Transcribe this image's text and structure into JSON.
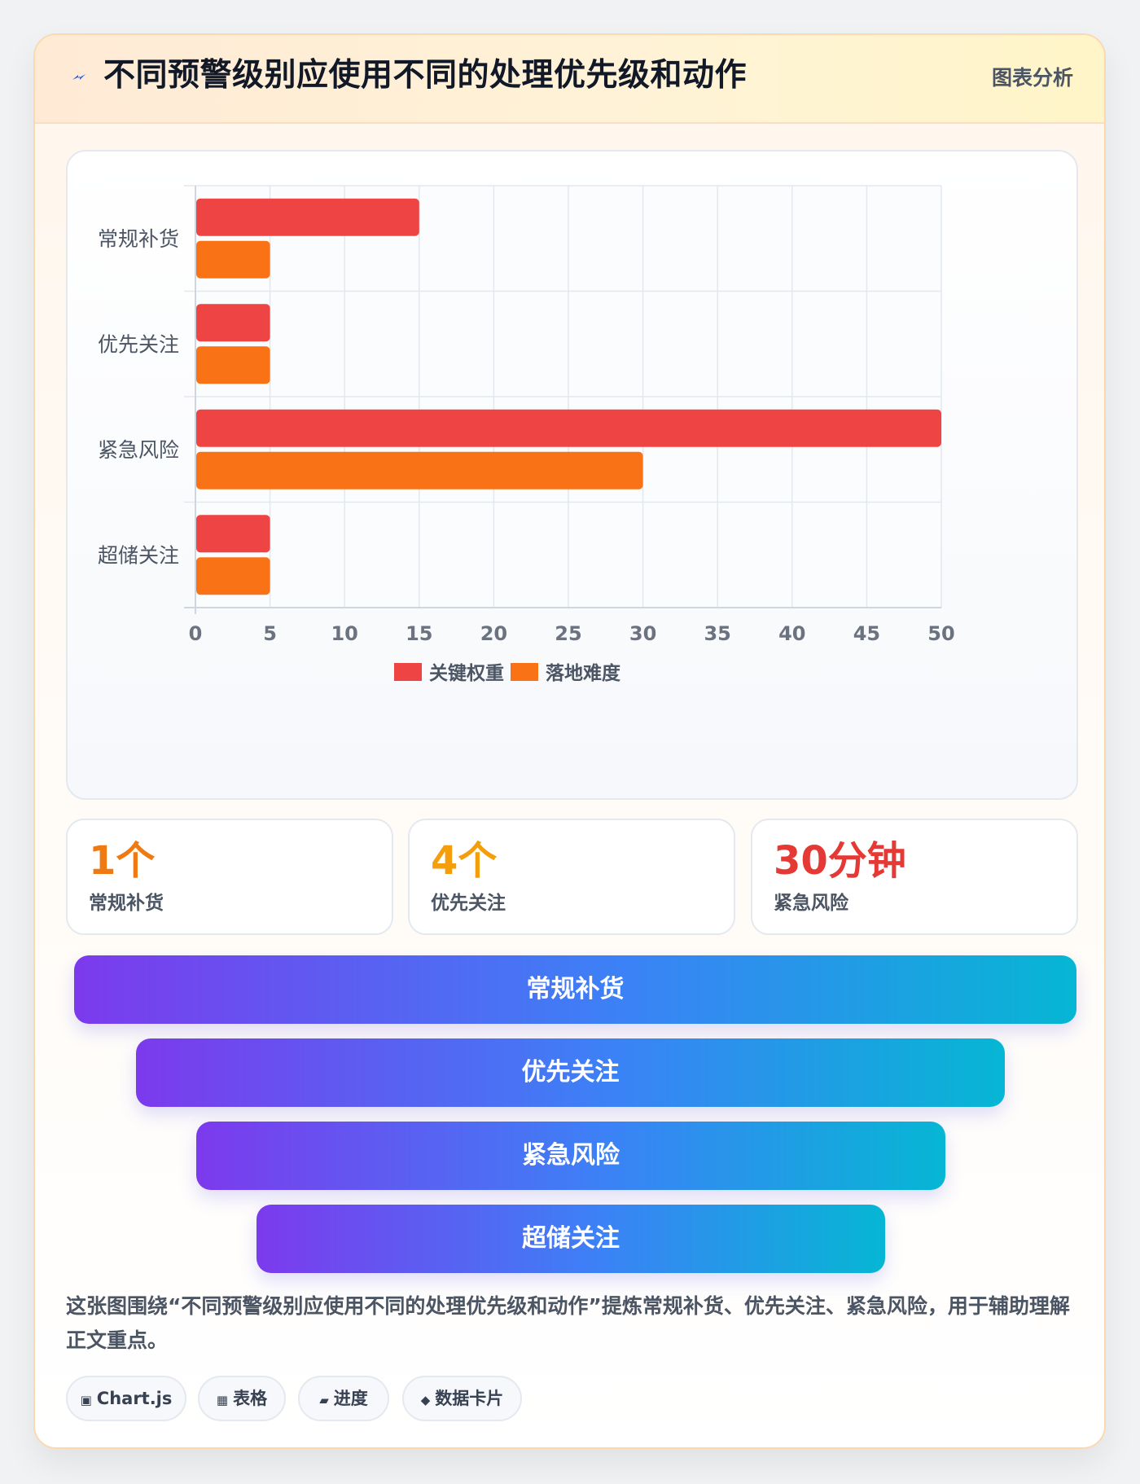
{
  "header": {
    "title": "不同预警级别应使用不同的处理优先级和动作",
    "tag": "图表分析",
    "icon": "lightning-icon"
  },
  "chart_data": {
    "type": "bar",
    "orientation": "horizontal",
    "categories": [
      "常规补货",
      "优先关注",
      "紧急风险",
      "超储关注"
    ],
    "series": [
      {
        "name": "关键权重",
        "values": [
          15,
          5,
          50,
          5
        ],
        "color": "#ef4444"
      },
      {
        "name": "落地难度",
        "values": [
          5,
          5,
          30,
          5
        ],
        "color": "#f97316"
      }
    ],
    "xlim": [
      0,
      50
    ],
    "xticks": [
      0,
      5,
      10,
      15,
      20,
      25,
      30,
      35,
      40,
      45,
      50
    ],
    "grid": true,
    "legend": "bottom-center"
  },
  "stats": [
    {
      "value": "1个",
      "label": "常规补货",
      "color": "#f07a12"
    },
    {
      "value": "4个",
      "label": "优先关注",
      "color": "#f59e0b"
    },
    {
      "value": "30分钟",
      "label": "紧急风险",
      "color": "#e53935"
    }
  ],
  "funnel": [
    "常规补货",
    "优先关注",
    "紧急风险",
    "超储关注"
  ],
  "summary": "这张图围绕“不同预警级别应使用不同的处理优先级和动作”提炼常规补货、优先关注、紧急风险，用于辅助理解正文重点。",
  "pills": [
    {
      "icon": "▣",
      "icon_name": "chart-icon",
      "label": "Chart.js"
    },
    {
      "icon": "▦",
      "icon_name": "table-icon",
      "label": "表格"
    },
    {
      "icon": "▰",
      "icon_name": "progress-icon",
      "label": "进度"
    },
    {
      "icon": "◆",
      "icon_name": "data-card-icon",
      "label": "数据卡片"
    }
  ]
}
